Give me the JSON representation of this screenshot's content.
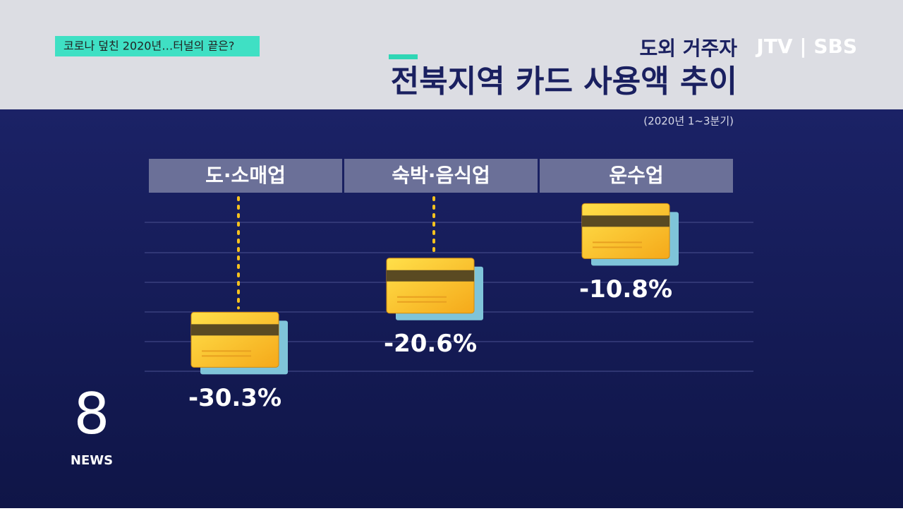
{
  "header": {
    "tag": "코로나 덮친 2020년…터널의 끝은?",
    "logo": "JTV | SBS"
  },
  "chart_data": {
    "type": "bar",
    "subtitle": "도외 거주자",
    "title": "전북지역 카드 사용액 추이",
    "note": "(2020년 1~3분기)",
    "categories": [
      "도·소매업",
      "숙박·음식업",
      "운수업"
    ],
    "values": [
      -30.3,
      -20.6,
      -10.8
    ],
    "value_labels": [
      "-30.3%",
      "-20.6%",
      "-10.8%"
    ],
    "color": "#f7c21e",
    "ylim": [
      -40,
      0
    ]
  },
  "footer": {
    "brand_number": "8",
    "brand_text": "NEWS"
  }
}
